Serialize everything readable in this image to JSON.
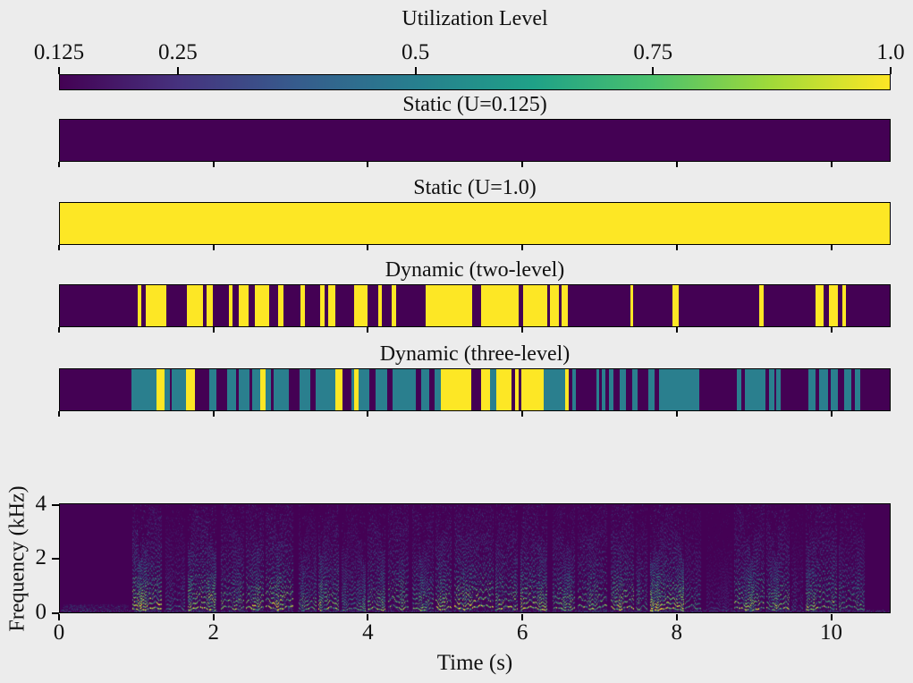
{
  "figure": {
    "background": "#ececec",
    "text_color": "#111111",
    "axis_color": "#000000"
  },
  "level_colors": {
    "0.125": "#440154",
    "0.5": "#2a7f8e",
    "1": "#fde725"
  },
  "chart_data": [
    {
      "type": "colorbar",
      "title": "Utilization Level",
      "orientation": "horizontal",
      "value_range": [
        0.125,
        1.0
      ],
      "tick_values": [
        0.125,
        0.25,
        0.5,
        0.75,
        1.0
      ],
      "tick_labels": [
        "0.125",
        "0.25",
        "0.5",
        "0.75",
        "1.0"
      ],
      "gradient_stops": [
        "#440154",
        "#46327e",
        "#365c8d",
        "#277f8e",
        "#1fa187",
        "#4ac16d",
        "#a0da39",
        "#fde725"
      ]
    },
    {
      "type": "heatmap-strip",
      "title": "Static (U=0.125)",
      "base_level": 0.125,
      "levels": [
        0.125
      ],
      "segments": []
    },
    {
      "type": "heatmap-strip",
      "title": "Static (U=1.0)",
      "base_level": 1.0,
      "levels": [
        1.0
      ],
      "segments": []
    },
    {
      "type": "heatmap-strip",
      "title": "Dynamic (two-level)",
      "base_level": 0.125,
      "levels": [
        0.125,
        1.0
      ],
      "segments": [
        [
          0.094,
          0.098,
          1.0
        ],
        [
          0.103,
          0.128,
          1.0
        ],
        [
          0.153,
          0.172,
          1.0
        ],
        [
          0.177,
          0.184,
          1.0
        ],
        [
          0.204,
          0.208,
          1.0
        ],
        [
          0.215,
          0.227,
          1.0
        ],
        [
          0.235,
          0.252,
          1.0
        ],
        [
          0.263,
          0.269,
          1.0
        ],
        [
          0.29,
          0.295,
          1.0
        ],
        [
          0.314,
          0.319,
          1.0
        ],
        [
          0.323,
          0.332,
          1.0
        ],
        [
          0.354,
          0.371,
          1.0
        ],
        [
          0.384,
          0.388,
          1.0
        ],
        [
          0.4,
          0.405,
          1.0
        ],
        [
          0.441,
          0.497,
          1.0
        ],
        [
          0.508,
          0.553,
          1.0
        ],
        [
          0.558,
          0.587,
          1.0
        ],
        [
          0.59,
          0.601,
          1.0
        ],
        [
          0.604,
          0.612,
          1.0
        ],
        [
          0.687,
          0.691,
          1.0
        ],
        [
          0.738,
          0.746,
          1.0
        ],
        [
          0.843,
          0.848,
          1.0
        ],
        [
          0.911,
          0.92,
          1.0
        ],
        [
          0.927,
          0.937,
          1.0
        ],
        [
          0.943,
          0.947,
          1.0
        ]
      ]
    },
    {
      "type": "heatmap-strip",
      "title": "Dynamic (three-level)",
      "base_level": 0.125,
      "levels": [
        0.125,
        0.5,
        1.0
      ],
      "segments": [
        [
          0.086,
          0.116,
          0.5
        ],
        [
          0.116,
          0.126,
          1.0
        ],
        [
          0.126,
          0.133,
          0.5
        ],
        [
          0.135,
          0.152,
          0.5
        ],
        [
          0.152,
          0.163,
          1.0
        ],
        [
          0.18,
          0.189,
          0.5
        ],
        [
          0.201,
          0.212,
          0.5
        ],
        [
          0.216,
          0.228,
          0.5
        ],
        [
          0.232,
          0.241,
          0.5
        ],
        [
          0.241,
          0.248,
          1.0
        ],
        [
          0.248,
          0.254,
          0.5
        ],
        [
          0.258,
          0.276,
          0.5
        ],
        [
          0.289,
          0.302,
          0.5
        ],
        [
          0.308,
          0.332,
          0.5
        ],
        [
          0.332,
          0.341,
          1.0
        ],
        [
          0.351,
          0.355,
          0.5
        ],
        [
          0.355,
          0.36,
          1.0
        ],
        [
          0.36,
          0.373,
          0.5
        ],
        [
          0.38,
          0.394,
          0.5
        ],
        [
          0.401,
          0.429,
          0.5
        ],
        [
          0.435,
          0.445,
          0.5
        ],
        [
          0.451,
          0.459,
          0.5
        ],
        [
          0.459,
          0.496,
          1.0
        ],
        [
          0.508,
          0.518,
          1.0
        ],
        [
          0.518,
          0.526,
          0.5
        ],
        [
          0.526,
          0.544,
          1.0
        ],
        [
          0.548,
          0.553,
          1.0
        ],
        [
          0.556,
          0.583,
          1.0
        ],
        [
          0.583,
          0.609,
          0.5
        ],
        [
          0.609,
          0.613,
          1.0
        ],
        [
          0.617,
          0.622,
          0.5
        ],
        [
          0.646,
          0.65,
          0.5
        ],
        [
          0.653,
          0.657,
          0.5
        ],
        [
          0.662,
          0.667,
          0.5
        ],
        [
          0.674,
          0.682,
          0.5
        ],
        [
          0.69,
          0.696,
          0.5
        ],
        [
          0.709,
          0.717,
          0.5
        ],
        [
          0.722,
          0.771,
          0.5
        ],
        [
          0.816,
          0.821,
          0.5
        ],
        [
          0.825,
          0.85,
          0.5
        ],
        [
          0.855,
          0.861,
          0.5
        ],
        [
          0.863,
          0.869,
          0.5
        ],
        [
          0.902,
          0.911,
          0.5
        ],
        [
          0.915,
          0.926,
          0.5
        ],
        [
          0.929,
          0.937,
          0.5
        ],
        [
          0.945,
          0.954,
          0.5
        ],
        [
          0.958,
          0.965,
          0.5
        ]
      ]
    },
    {
      "type": "spectrogram",
      "xlabel": "Time (s)",
      "ylabel": "Frequency (kHz)",
      "x_range": [
        0,
        10.77
      ],
      "y_range_khz": [
        0,
        4
      ],
      "x_ticks": [
        0,
        2,
        4,
        6,
        8,
        10
      ],
      "y_ticks": [
        4,
        2,
        0
      ],
      "background": "#440154",
      "silence_end_s": 0.92,
      "voiced_segments": [
        [
          0.95,
          1.32,
          0.95
        ],
        [
          1.38,
          1.62,
          0.55
        ],
        [
          1.66,
          2.02,
          0.95
        ],
        [
          2.1,
          2.38,
          0.8
        ],
        [
          2.42,
          2.64,
          0.9
        ],
        [
          2.68,
          3.02,
          0.95
        ],
        [
          3.1,
          3.32,
          0.7
        ],
        [
          3.36,
          3.62,
          0.85
        ],
        [
          3.66,
          3.96,
          0.65
        ],
        [
          4.0,
          4.22,
          0.8
        ],
        [
          4.26,
          4.52,
          0.85
        ],
        [
          4.58,
          4.84,
          0.75
        ],
        [
          4.88,
          5.08,
          0.9
        ],
        [
          5.12,
          5.62,
          0.95
        ],
        [
          5.66,
          5.94,
          0.85
        ],
        [
          5.98,
          6.32,
          0.9
        ],
        [
          6.4,
          6.68,
          0.8
        ],
        [
          6.72,
          7.1,
          0.85
        ],
        [
          7.16,
          7.44,
          0.9
        ],
        [
          7.48,
          7.62,
          0.7
        ],
        [
          7.66,
          8.1,
          0.9
        ],
        [
          8.12,
          8.32,
          0.6
        ],
        [
          8.4,
          8.72,
          0.3
        ],
        [
          8.76,
          9.14,
          0.85
        ],
        [
          9.18,
          9.46,
          0.8
        ],
        [
          9.5,
          9.64,
          0.45
        ],
        [
          9.68,
          10.08,
          0.85
        ],
        [
          10.12,
          10.44,
          0.7
        ]
      ]
    }
  ]
}
